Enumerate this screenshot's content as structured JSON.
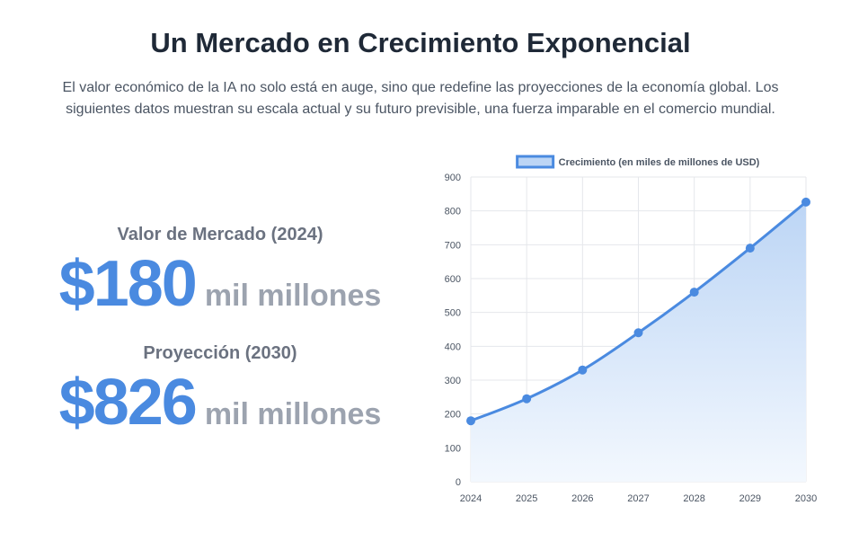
{
  "header": {
    "title": "Un Mercado en Crecimiento Exponencial",
    "description": "El valor económico de la IA no solo está en auge, sino que redefine las proyecciones de la economía global. Los siguientes datos muestran su escala actual y su futuro previsible, una fuerza imparable en el comercio mundial."
  },
  "stats": [
    {
      "label": "Valor de Mercado (2024)",
      "value": "$180",
      "unit": "mil millones"
    },
    {
      "label": "Proyección (2030)",
      "value": "$826",
      "unit": "mil millones"
    }
  ],
  "colors": {
    "accent": "#4a8ae0",
    "fill_top": "#bcd5f5",
    "fill_bottom": "#f3f8fe",
    "grid": "#e5e7eb",
    "tick_text": "#4b5563"
  },
  "chart_data": {
    "type": "line",
    "x": [
      "2024",
      "2025",
      "2026",
      "2027",
      "2028",
      "2029",
      "2030"
    ],
    "series": [
      {
        "name": "Crecimiento (en miles de millones de USD)",
        "values": [
          180,
          245,
          330,
          440,
          560,
          690,
          826
        ]
      }
    ],
    "ylim": [
      0,
      900
    ],
    "yticks": [
      0,
      100,
      200,
      300,
      400,
      500,
      600,
      700,
      800,
      900
    ],
    "filled": true,
    "grid": true,
    "legend": "top-center"
  }
}
